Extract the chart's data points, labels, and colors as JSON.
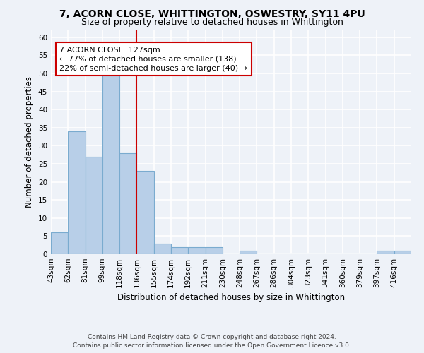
{
  "title_line1": "7, ACORN CLOSE, WHITTINGTON, OSWESTRY, SY11 4PU",
  "title_line2": "Size of property relative to detached houses in Whittington",
  "xlabel": "Distribution of detached houses by size in Whittington",
  "ylabel": "Number of detached properties",
  "bin_labels": [
    "43sqm",
    "62sqm",
    "81sqm",
    "99sqm",
    "118sqm",
    "136sqm",
    "155sqm",
    "174sqm",
    "192sqm",
    "211sqm",
    "230sqm",
    "248sqm",
    "267sqm",
    "286sqm",
    "304sqm",
    "323sqm",
    "341sqm",
    "360sqm",
    "379sqm",
    "397sqm",
    "416sqm"
  ],
  "values": [
    6,
    34,
    27,
    50,
    28,
    23,
    3,
    2,
    2,
    2,
    0,
    1,
    0,
    0,
    0,
    0,
    0,
    0,
    0,
    1,
    1
  ],
  "bar_color": "#b8cfe8",
  "bar_edge_color": "#7aabcf",
  "vline_position": 5,
  "vline_color": "#cc0000",
  "annotation_text": "7 ACORN CLOSE: 127sqm\n← 77% of detached houses are smaller (138)\n22% of semi-detached houses are larger (40) →",
  "annotation_box_color": "#cc0000",
  "ylim": [
    0,
    62
  ],
  "yticks": [
    0,
    5,
    10,
    15,
    20,
    25,
    30,
    35,
    40,
    45,
    50,
    55,
    60
  ],
  "footer_line1": "Contains HM Land Registry data © Crown copyright and database right 2024.",
  "footer_line2": "Contains public sector information licensed under the Open Government Licence v3.0.",
  "background_color": "#eef2f8",
  "grid_color": "#ffffff",
  "title_fontsize": 10,
  "subtitle_fontsize": 9,
  "axis_label_fontsize": 8.5,
  "tick_fontsize": 7.5,
  "annotation_fontsize": 8,
  "footer_fontsize": 6.5
}
